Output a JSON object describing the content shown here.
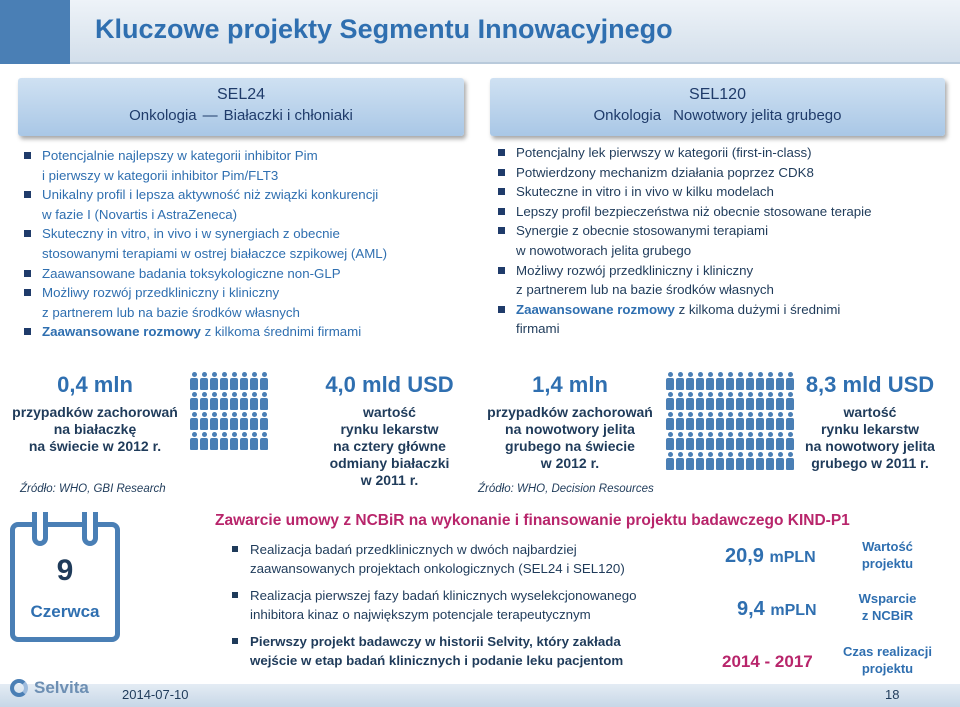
{
  "header": {
    "title": "Kluczowe projekty Segmentu Innowacyjnego"
  },
  "left_panel": {
    "code": "SEL24",
    "sub_a": "Onkologia",
    "sub_b": "Białaczki i chłoniaki",
    "bullets": [
      [
        "Potencjalnie najlepszy w kategorii inhibitor Pim",
        "i pierwszy w kategorii inhibitor Pim/FLT3"
      ],
      [
        "Unikalny profil i lepsza aktywność niż związki konkurencji",
        "w fazie I (Novartis i AstraZeneca)"
      ],
      [
        "Skuteczny in vitro, in vivo i w synergiach z obecnie",
        "stosowanymi terapiami w ostrej białaczce szpikowej (AML)"
      ],
      [
        "Zaawansowane badania toksykologiczne non-GLP"
      ],
      [
        "Możliwy rozwój przedkliniczny i kliniczny",
        "z partnerem lub na bazie środków własnych"
      ]
    ],
    "last_bold": "Zaawansowane rozmowy",
    "last_rest": " z kilkoma średnimi firmami"
  },
  "right_panel": {
    "code": "SEL120",
    "sub_a": "Onkologia",
    "sub_b": "Nowotwory jelita grubego",
    "bullets": [
      [
        "Potencjalny lek pierwszy w kategorii (first-in-class)"
      ],
      [
        "Potwierdzony mechanizm działania poprzez CDK8"
      ],
      [
        "Skuteczne in vitro i in vivo w kilku modelach"
      ],
      [
        "Lepszy profil bezpieczeństwa niż obecnie stosowane terapie"
      ],
      [
        "Synergie z obecnie stosowanymi terapiami",
        "w nowotworach jelita grubego"
      ],
      [
        "Możliwy rozwój przedkliniczny i kliniczny",
        "z partnerem lub na bazie środków własnych"
      ]
    ],
    "last_bold": "Zaawansowane rozmowy",
    "last_rest": " z kilkoma dużymi i średnimi",
    "last_rest2": "firmami"
  },
  "stats": {
    "s1_value": "0,4 mln",
    "s1_lines": [
      "przypadków zachorowań",
      "na białaczkę",
      "na świecie w 2012 r."
    ],
    "s1_source": "Źródło: WHO, GBI Research",
    "s2_value": "4,0 mld USD",
    "s2_lines": [
      "wartość",
      "rynku lekarstw",
      "na cztery główne",
      "odmiany białaczki",
      "w 2011 r."
    ],
    "s3_value": "1,4 mln",
    "s3_lines": [
      "przypadków zachorowań",
      "na nowotwory jelita",
      "grubego na świecie",
      "w 2012 r."
    ],
    "s3_source": "Źródło: WHO, Decision Resources",
    "s4_value": "8,3 mld USD",
    "s4_lines": [
      "wartość",
      "rynku lekarstw",
      "na nowotwory jelita",
      "grubego w 2011 r."
    ]
  },
  "calendar": {
    "day": "9",
    "month": "Czerwca"
  },
  "agreement": {
    "title": "Zawarcie umowy z NCBiR na wykonanie i finansowanie projektu badawczego KIND-P1",
    "items": [
      [
        "Realizacja badań przedklinicznych w dwóch najbardziej",
        "zaawansowanych projektach onkologicznych (SEL24 i SEL120)"
      ],
      [
        "Realizacja  pierwszej fazy badań klinicznych  wyselekcjonowanego",
        "inhibitora kinaz o największym potencjale terapeutycznym"
      ],
      [
        "Pierwszy projekt badawczy w historii Selvity, który zakłada",
        "wejście w etap badań klinicznych i podanie leku pacjentom"
      ]
    ],
    "fig1_num": "20,9",
    "fig1_unit": "mPLN",
    "fig1_label": [
      "Wartość",
      "projektu"
    ],
    "fig2_num": "9,4",
    "fig2_unit": "mPLN",
    "fig2_label": [
      "Wsparcie",
      "z NCBiR"
    ],
    "fig3_value": "2014 - 2017",
    "fig3_label": [
      "Czas realizacji",
      "projektu"
    ]
  },
  "footer": {
    "logo": "Selvita",
    "date": "2014-07-10",
    "page": "18"
  },
  "colors": {
    "accent": "#2f6fb0",
    "magenta": "#b8256b",
    "dark": "#1f3b5a"
  }
}
